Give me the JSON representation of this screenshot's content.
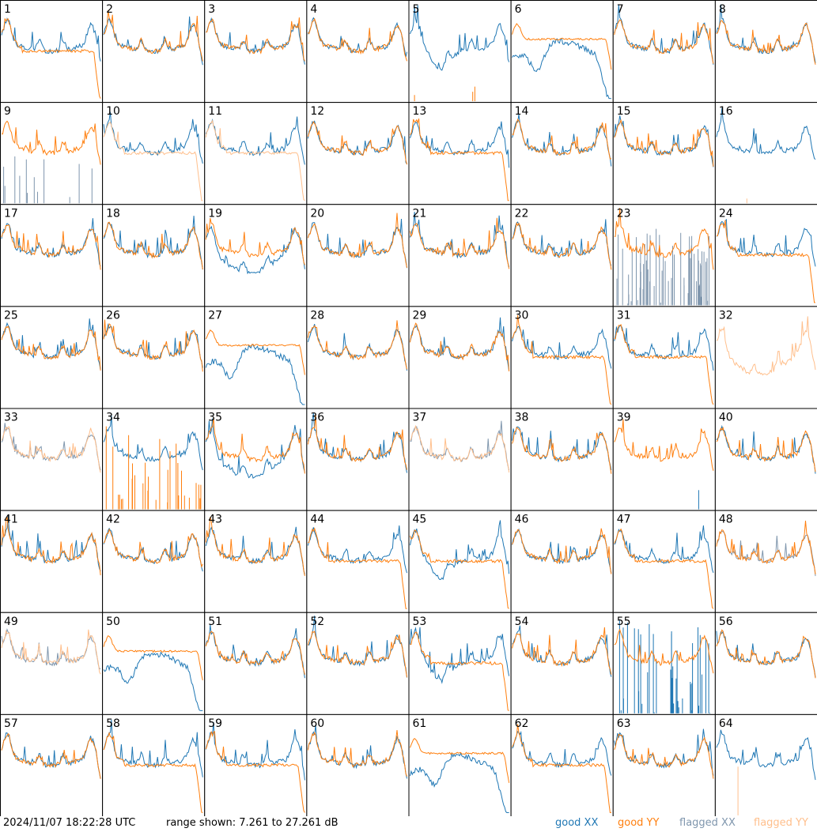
{
  "chart_data": {
    "type": "line",
    "panels": 64,
    "columns": 8,
    "rows": 8,
    "panel_labels": [
      "1",
      "2",
      "3",
      "4",
      "5",
      "6",
      "7",
      "8",
      "9",
      "10",
      "11",
      "12",
      "13",
      "14",
      "15",
      "16",
      "17",
      "18",
      "19",
      "20",
      "21",
      "22",
      "23",
      "24",
      "25",
      "26",
      "27",
      "28",
      "29",
      "30",
      "31",
      "32",
      "33",
      "34",
      "35",
      "36",
      "37",
      "38",
      "39",
      "40",
      "41",
      "42",
      "43",
      "44",
      "45",
      "46",
      "47",
      "48",
      "49",
      "50",
      "51",
      "52",
      "53",
      "54",
      "55",
      "56",
      "57",
      "58",
      "59",
      "60",
      "61",
      "62",
      "63",
      "64"
    ],
    "range_db": [
      7.261,
      27.261
    ],
    "series": [
      {
        "name": "good XX",
        "color": "#1f77b4"
      },
      {
        "name": "good YY",
        "color": "#ff7f0e"
      },
      {
        "name": "flagged XX",
        "color": "#7f96ad"
      },
      {
        "name": "flagged YY",
        "color": "#ffbf8c"
      }
    ],
    "panel_styles": {
      "1": {
        "xx": "normal",
        "yy": "drop"
      },
      "5": {
        "xx": "sag",
        "yy": "spikes"
      },
      "6": {
        "xx": "droop",
        "yy": "flat"
      },
      "9": {
        "xx": "flagged-spikes",
        "yy": "normal"
      },
      "10": {
        "xx": "normal",
        "yy": "flagged-drop"
      },
      "11": {
        "xx": "normal",
        "yy": "flagged-drop"
      },
      "13": {
        "xx": "normal",
        "yy": "drop"
      },
      "16": {
        "xx": "normal",
        "yy": "flagged-single-spike"
      },
      "19": {
        "xx": "low",
        "yy": "normal"
      },
      "23": {
        "xx": "flagged-noise",
        "yy": "normal"
      },
      "24": {
        "xx": "normal",
        "yy": "drop"
      },
      "27": {
        "xx": "droop",
        "yy": "flat"
      },
      "30": {
        "xx": "normal",
        "yy": "drop"
      },
      "31": {
        "xx": "normal",
        "yy": "drop"
      },
      "32": {
        "xx": "none",
        "yy": "flagged-noisy"
      },
      "33": {
        "xx": "flagged",
        "yy": "flagged"
      },
      "34": {
        "xx": "normal",
        "yy": "spikes-big"
      },
      "35": {
        "xx": "low",
        "yy": "normal"
      },
      "37": {
        "xx": "flagged",
        "yy": "flagged"
      },
      "39": {
        "xx": "single-spike",
        "yy": "normal"
      },
      "44": {
        "xx": "normal",
        "yy": "drop"
      },
      "45": {
        "xx": "sag",
        "yy": "drop"
      },
      "47": {
        "xx": "normal",
        "yy": "drop"
      },
      "48": {
        "xx": "flagged",
        "yy": "normal"
      },
      "49": {
        "xx": "flagged",
        "yy": "flagged"
      },
      "50": {
        "xx": "droop",
        "yy": "flat"
      },
      "53": {
        "xx": "sag",
        "yy": "drop"
      },
      "55": {
        "xx": "spikes-big",
        "yy": "normal"
      },
      "58": {
        "xx": "normal",
        "yy": "drop"
      },
      "59": {
        "xx": "normal",
        "yy": "drop"
      },
      "61": {
        "xx": "droop",
        "yy": "flat"
      },
      "62": {
        "xx": "normal",
        "yy": "drop"
      },
      "64": {
        "xx": "normal",
        "yy": "flagged-single-spike"
      }
    }
  },
  "footer": {
    "timestamp": "2024/11/07 18:22:28 UTC",
    "range_text": "range shown: 7.261 to 27.261 dB",
    "legend": [
      "good XX",
      "good YY",
      "flagged XX",
      "flagged YY"
    ]
  }
}
